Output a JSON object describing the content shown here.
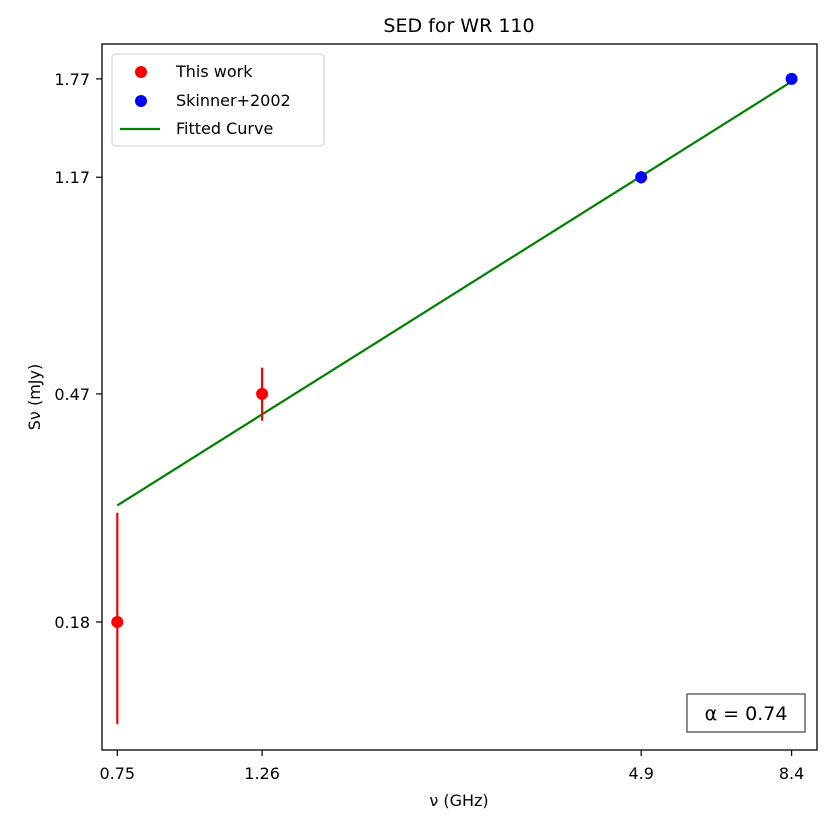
{
  "chart_data": {
    "type": "scatter",
    "title": "SED for WR 110",
    "xlabel": "ν (GHz)",
    "ylabel": "Sν (mJy)",
    "xscale": "log",
    "yscale": "log",
    "xlim": [
      0.71,
      9.2
    ],
    "ylim": [
      0.105,
      2.05
    ],
    "xticks": [
      0.75,
      1.26,
      4.9,
      8.4
    ],
    "xtick_labels": [
      "0.75",
      "1.26",
      "4.9",
      "8.4"
    ],
    "yticks": [
      0.18,
      0.47,
      1.17,
      1.77
    ],
    "ytick_labels": [
      "0.18",
      "0.47",
      "1.17",
      "1.77"
    ],
    "grid": false,
    "legend_position": "top-left",
    "series": [
      {
        "name": "This work",
        "kind": "points",
        "color": "#ff0000",
        "points": [
          {
            "x": 0.75,
            "y": 0.18,
            "yerr_low": 0.063,
            "yerr_high": 0.105
          },
          {
            "x": 1.26,
            "y": 0.47,
            "yerr_low": 0.05,
            "yerr_high": 0.055
          }
        ]
      },
      {
        "name": "Skinner+2002",
        "kind": "points",
        "color": "#0000ff",
        "points": [
          {
            "x": 4.9,
            "y": 1.17,
            "yerr_low": 0.03,
            "yerr_high": 0.03
          },
          {
            "x": 8.4,
            "y": 1.77,
            "yerr_low": 0.02,
            "yerr_high": 0.02
          }
        ]
      },
      {
        "name": "Fitted Curve",
        "kind": "line",
        "color": "#008000",
        "x": [
          0.75,
          8.4
        ],
        "y": [
          0.294,
          1.75
        ]
      }
    ],
    "annotation": {
      "text": "α = 0.74"
    }
  }
}
